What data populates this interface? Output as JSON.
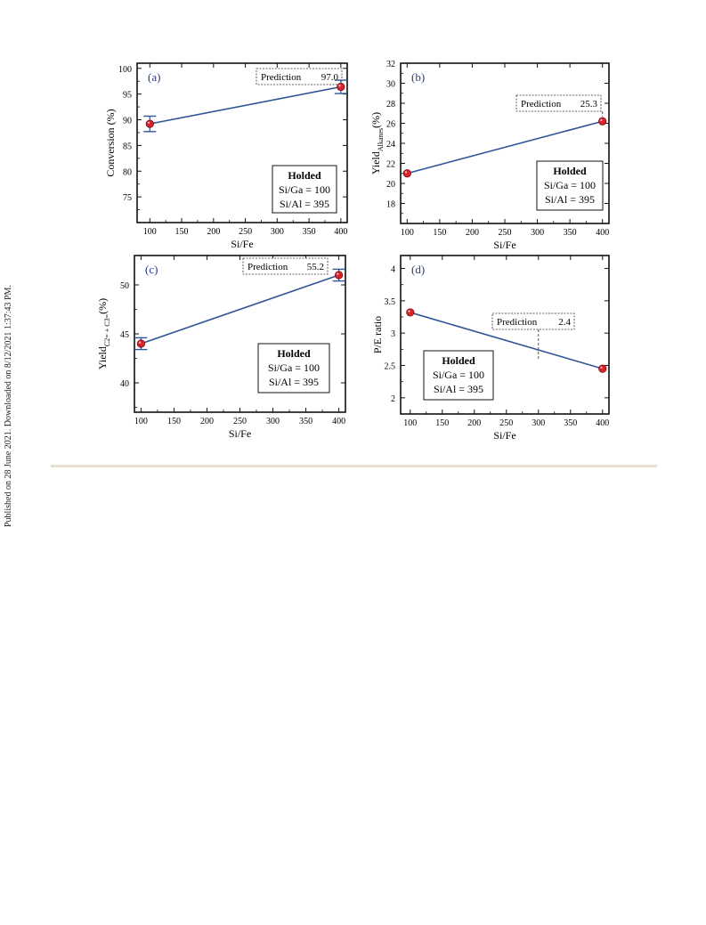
{
  "side_note": "Published on 28 June 2021. Downloaded on 8/12/2021 1:37:43 PM.",
  "chart_data": [
    {
      "type": "line",
      "panel_label": "(a)",
      "xlabel": "Si/Fe",
      "ylabel": "Conversion (%)",
      "xlim": [
        80,
        410
      ],
      "ylim": [
        70,
        101
      ],
      "xticks": [
        "100",
        "150",
        "200",
        "250",
        "300",
        "350",
        "400"
      ],
      "yticks": [
        "75",
        "80",
        "85",
        "90",
        "95",
        "100"
      ],
      "x": [
        100,
        400
      ],
      "y": [
        89.2,
        96.4
      ],
      "error": [
        1.5,
        1.3
      ],
      "prediction_label": "Prediction",
      "prediction_value": "97.0",
      "legend_title": "Holded",
      "legend_lines": [
        "Si/Ga = 100",
        "Si/Al = 395"
      ]
    },
    {
      "type": "line",
      "panel_label": "(b)",
      "xlabel": "Si/Fe",
      "ylabel_main": "Yield",
      "ylabel_sub": "Alkanes",
      "ylabel_unit": "(%)",
      "xlim": [
        90,
        410
      ],
      "ylim": [
        16,
        32
      ],
      "xticks": [
        "100",
        "150",
        "200",
        "250",
        "300",
        "350",
        "400"
      ],
      "yticks": [
        "18",
        "20",
        "22",
        "24",
        "26",
        "28",
        "30",
        "32"
      ],
      "x": [
        100,
        400
      ],
      "y": [
        21.0,
        26.2
      ],
      "prediction_label": "Prediction",
      "prediction_value": "25.3",
      "legend_title": "Holded",
      "legend_lines": [
        "Si/Ga = 100",
        "Si/Al = 395"
      ]
    },
    {
      "type": "line",
      "panel_label": "(c)",
      "xlabel": "Si/Fe",
      "ylabel_main": "Yield",
      "ylabel_sub": "C2= + C3=",
      "ylabel_unit": "(%)",
      "xlim": [
        90,
        410
      ],
      "ylim": [
        37,
        53
      ],
      "xticks": [
        "100",
        "150",
        "200",
        "250",
        "300",
        "350",
        "400"
      ],
      "yticks": [
        "40",
        "45",
        "50"
      ],
      "x": [
        100,
        400
      ],
      "y": [
        44.0,
        51.0
      ],
      "error": [
        0.6,
        0.6
      ],
      "prediction_label": "Prediction",
      "prediction_value": "55.2",
      "legend_title": "Holded",
      "legend_lines": [
        "Si/Ga = 100",
        "Si/Al = 395"
      ]
    },
    {
      "type": "line",
      "panel_label": "(d)",
      "xlabel": "Si/Fe",
      "ylabel": "P/E ratio",
      "xlim": [
        85,
        410
      ],
      "ylim": [
        1.75,
        4.2
      ],
      "xticks": [
        "100",
        "150",
        "200",
        "250",
        "300",
        "350",
        "400"
      ],
      "yticks": [
        "2",
        "2.5",
        "3",
        "3.5",
        "4"
      ],
      "x": [
        100,
        400
      ],
      "y": [
        3.32,
        2.45
      ],
      "prediction_label": "Prediction",
      "prediction_value": "2.4",
      "legend_title": "Holded",
      "legend_lines": [
        "Si/Ga = 100",
        "Si/Al = 395"
      ]
    }
  ]
}
